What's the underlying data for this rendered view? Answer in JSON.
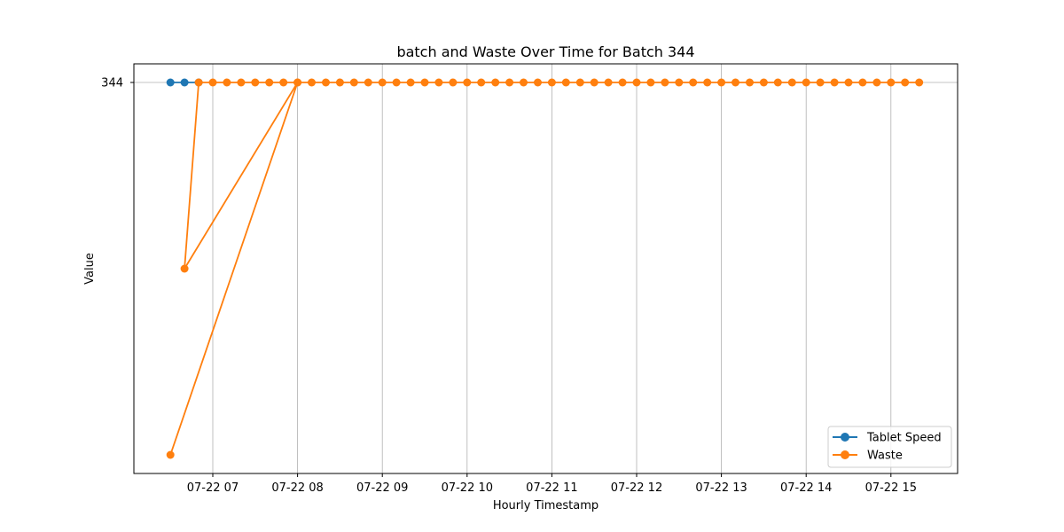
{
  "chart_data": {
    "type": "line",
    "title": "batch and Waste Over Time for Batch 344",
    "xlabel": "Hourly Timestamp",
    "ylabel": "Value",
    "x_ticks": [
      "07-22 07",
      "07-22 08",
      "07-22 09",
      "07-22 10",
      "07-22 11",
      "07-22 12",
      "07-22 13",
      "07-22 14",
      "07-22 15"
    ],
    "y_ticks": [
      "344"
    ],
    "grid": true,
    "legend_position": "lower-right",
    "series": [
      {
        "name": "Tablet Speed",
        "color": "#1f77b4",
        "marker": "circle",
        "points": [
          {
            "x": "07-22 06:30",
            "y": 344
          },
          {
            "x": "07-22 06:40",
            "y": 344
          },
          {
            "x": "07-22 06:50",
            "y": 344
          }
        ]
      },
      {
        "name": "Waste",
        "color": "#ff7f0e",
        "marker": "circle",
        "points": [
          {
            "x": "07-22 06:30",
            "y": 0
          },
          {
            "x": "07-22 08:00",
            "y": 344
          },
          {
            "x": "07-22 06:40",
            "y": 172
          },
          {
            "x": "07-22 06:50",
            "y": 344
          },
          {
            "x": "07-22 07:00",
            "y": 344
          },
          {
            "x": "07-22 07:10",
            "y": 344
          },
          {
            "x": "07-22 07:20",
            "y": 344
          },
          {
            "x": "07-22 07:30",
            "y": 344
          },
          {
            "x": "07-22 07:40",
            "y": 344
          },
          {
            "x": "07-22 07:50",
            "y": 344
          },
          {
            "x": "07-22 08:00",
            "y": 344
          },
          {
            "x": "07-22 08:10",
            "y": 344
          },
          {
            "x": "07-22 08:20",
            "y": 344
          },
          {
            "x": "07-22 08:30",
            "y": 344
          },
          {
            "x": "07-22 08:40",
            "y": 344
          },
          {
            "x": "07-22 08:50",
            "y": 344
          },
          {
            "x": "07-22 09:00",
            "y": 344
          },
          {
            "x": "07-22 09:10",
            "y": 344
          },
          {
            "x": "07-22 09:20",
            "y": 344
          },
          {
            "x": "07-22 09:30",
            "y": 344
          },
          {
            "x": "07-22 09:40",
            "y": 344
          },
          {
            "x": "07-22 09:50",
            "y": 344
          },
          {
            "x": "07-22 10:00",
            "y": 344
          },
          {
            "x": "07-22 10:10",
            "y": 344
          },
          {
            "x": "07-22 10:20",
            "y": 344
          },
          {
            "x": "07-22 10:30",
            "y": 344
          },
          {
            "x": "07-22 10:40",
            "y": 344
          },
          {
            "x": "07-22 10:50",
            "y": 344
          },
          {
            "x": "07-22 11:00",
            "y": 344
          },
          {
            "x": "07-22 11:10",
            "y": 344
          },
          {
            "x": "07-22 11:20",
            "y": 344
          },
          {
            "x": "07-22 11:30",
            "y": 344
          },
          {
            "x": "07-22 11:40",
            "y": 344
          },
          {
            "x": "07-22 11:50",
            "y": 344
          },
          {
            "x": "07-22 12:00",
            "y": 344
          },
          {
            "x": "07-22 12:10",
            "y": 344
          },
          {
            "x": "07-22 12:20",
            "y": 344
          },
          {
            "x": "07-22 12:30",
            "y": 344
          },
          {
            "x": "07-22 12:40",
            "y": 344
          },
          {
            "x": "07-22 12:50",
            "y": 344
          },
          {
            "x": "07-22 13:00",
            "y": 344
          },
          {
            "x": "07-22 13:10",
            "y": 344
          },
          {
            "x": "07-22 13:20",
            "y": 344
          },
          {
            "x": "07-22 13:30",
            "y": 344
          },
          {
            "x": "07-22 13:40",
            "y": 344
          },
          {
            "x": "07-22 13:50",
            "y": 344
          },
          {
            "x": "07-22 14:00",
            "y": 344
          },
          {
            "x": "07-22 14:10",
            "y": 344
          },
          {
            "x": "07-22 14:20",
            "y": 344
          },
          {
            "x": "07-22 14:30",
            "y": 344
          },
          {
            "x": "07-22 14:40",
            "y": 344
          },
          {
            "x": "07-22 14:50",
            "y": 344
          },
          {
            "x": "07-22 15:00",
            "y": 344
          },
          {
            "x": "07-22 15:10",
            "y": 344
          },
          {
            "x": "07-22 15:20",
            "y": 344
          }
        ]
      }
    ]
  }
}
